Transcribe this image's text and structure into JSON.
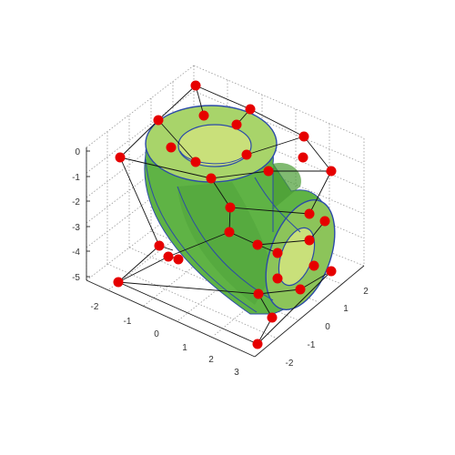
{
  "figure": {
    "background": "#ffffff",
    "surface_color": "#6abf4b",
    "surface_shade": "#4fa33a",
    "face_color": "#a8d46a",
    "inner_color": "#c9e07a",
    "edge_color": "#2b4aa8",
    "control_point_color": "#e60000",
    "control_net_color": "#111111",
    "grid_color": "#9a9a9a"
  },
  "axes": {
    "z_ticks": [
      "0",
      "-1",
      "-2",
      "-3",
      "-4",
      "-5"
    ],
    "x_ticks": [
      "-2",
      "-1",
      "0",
      "1",
      "2",
      "3"
    ],
    "y_ticks": [
      "-2",
      "-1",
      "0",
      "1",
      "2"
    ]
  }
}
